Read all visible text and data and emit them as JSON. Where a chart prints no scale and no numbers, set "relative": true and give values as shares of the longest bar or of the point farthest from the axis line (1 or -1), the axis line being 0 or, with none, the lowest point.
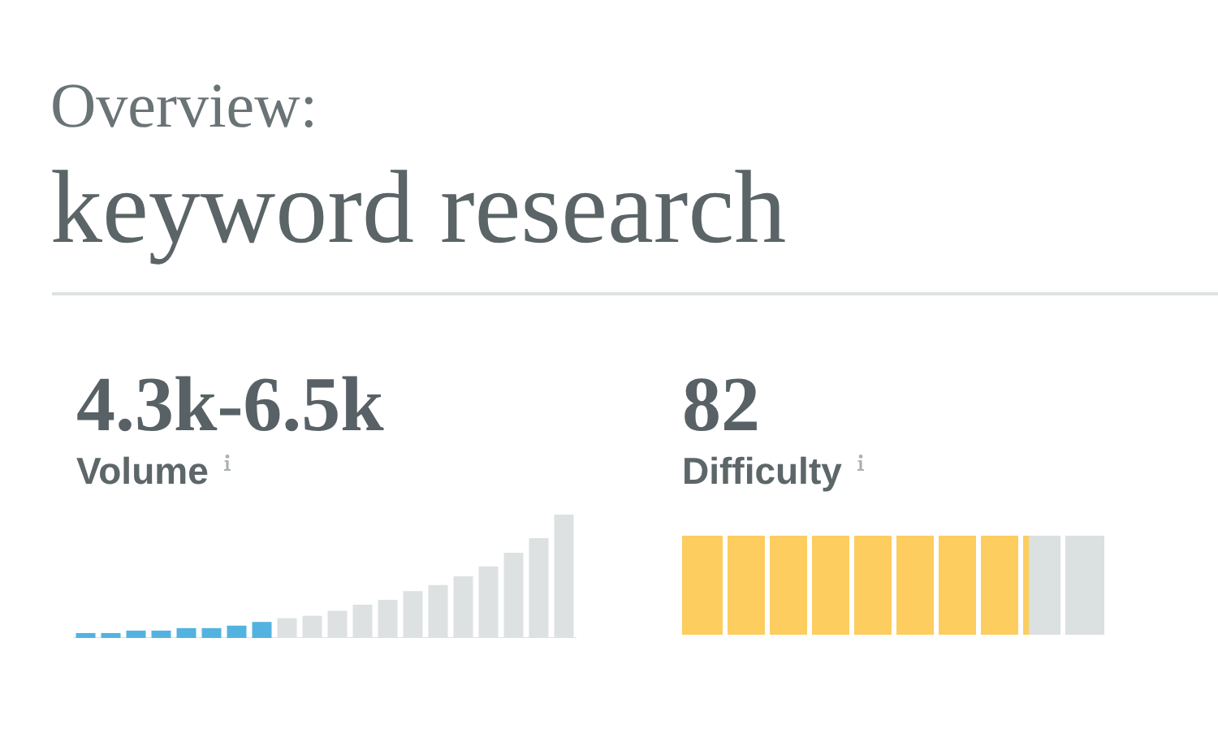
{
  "chart_data": [
    {
      "type": "other",
      "subtitle": "Overview:",
      "title": "keyword research"
    },
    {
      "type": "bar",
      "title": "Volume",
      "annotations": [
        "4.3k-6.5k"
      ],
      "relative": true,
      "categories": [
        null,
        null,
        null,
        null,
        null,
        null,
        null,
        null,
        null,
        null,
        null,
        null,
        null,
        null,
        null,
        null,
        null,
        null,
        null,
        null
      ],
      "values": [
        0.04,
        0.04,
        0.06,
        0.06,
        0.08,
        0.08,
        0.1,
        0.13,
        0.16,
        0.18,
        0.22,
        0.27,
        0.31,
        0.38,
        0.43,
        0.5,
        0.58,
        0.69,
        0.81,
        1
      ],
      "colors": [
        "#53b3e0",
        "#53b3e0",
        "#53b3e0",
        "#53b3e0",
        "#53b3e0",
        "#53b3e0",
        "#53b3e0",
        "#53b3e0",
        "#dde1e2",
        "#dde1e2",
        "#dde1e2",
        "#dde1e2",
        "#dde1e2",
        "#dde1e2",
        "#dde1e2",
        "#dde1e2",
        "#dde1e2",
        "#dde1e2",
        "#dde1e2",
        "#dde1e2"
      ]
    },
    {
      "type": "bar",
      "orientation": "horizontal",
      "stacked": true,
      "relative": true,
      "title": "Difficulty",
      "annotations": [
        "82"
      ],
      "categories": [
        null
      ],
      "series": [
        {
          "color": "#fdcd60",
          "values": [
            0.82
          ]
        },
        {
          "color": "#dbe0e1",
          "values": [
            0.18
          ]
        }
      ]
    }
  ]
}
